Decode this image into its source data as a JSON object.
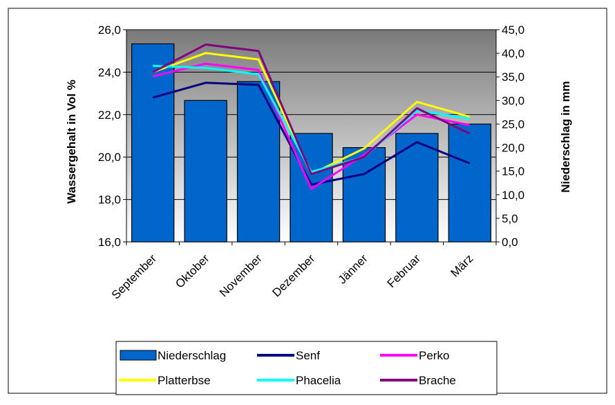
{
  "chart_data": {
    "type": "bar+line",
    "categories": [
      "September",
      "Oktober",
      "November",
      "Dezember",
      "Jänner",
      "Februar",
      "März"
    ],
    "left_axis": {
      "label": "Wassergehalt in Vol %",
      "range": [
        16.0,
        26.0
      ],
      "ticks": [
        "16,0",
        "18,0",
        "20,0",
        "22,0",
        "24,0",
        "26,0"
      ]
    },
    "right_axis": {
      "label": "Niederschlag in mm",
      "range": [
        0.0,
        45.0
      ],
      "ticks": [
        "0,0",
        "5,0",
        "10,0",
        "15,0",
        "20,0",
        "25,0",
        "30,0",
        "35,0",
        "40,0",
        "45,0"
      ]
    },
    "bars": {
      "name": "Niederschlag",
      "axis": "right",
      "color": "#0066CC",
      "values": [
        42.0,
        30.0,
        34.0,
        23.0,
        20.0,
        23.0,
        25.0
      ]
    },
    "series": [
      {
        "name": "Senf",
        "axis": "left",
        "color": "#000080",
        "values": [
          22.8,
          23.5,
          23.4,
          18.7,
          19.2,
          20.7,
          19.7
        ]
      },
      {
        "name": "Perko",
        "axis": "left",
        "color": "#FF00FF",
        "values": [
          23.8,
          24.4,
          24.1,
          18.5,
          20.1,
          22.0,
          21.5
        ]
      },
      {
        "name": "Platterbse",
        "axis": "left",
        "color": "#FFFF00",
        "values": [
          24.0,
          24.9,
          24.6,
          19.2,
          20.4,
          22.6,
          21.9
        ]
      },
      {
        "name": "Phacelia",
        "axis": "left",
        "color": "#00FFFF",
        "values": [
          24.3,
          24.2,
          23.9,
          19.3,
          20.0,
          22.2,
          21.8
        ]
      },
      {
        "name": "Brache",
        "axis": "left",
        "color": "#800080",
        "values": [
          24.0,
          25.3,
          25.0,
          19.2,
          20.0,
          22.3,
          21.1
        ]
      }
    ],
    "grid": true,
    "legend_position": "bottom"
  }
}
